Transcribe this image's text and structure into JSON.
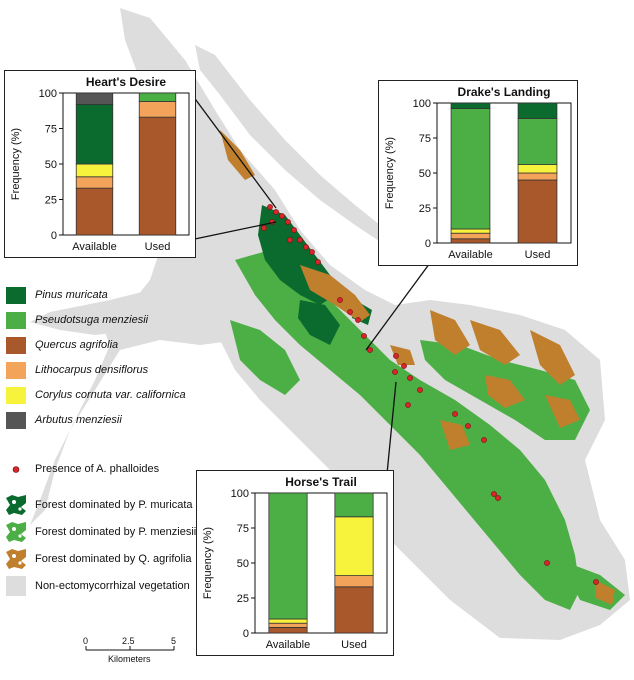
{
  "colors": {
    "pinus": "#0b6b2e",
    "pseudotsuga": "#4caf45",
    "quercus": "#a8582b",
    "lithocarpus": "#f4a35a",
    "corylus": "#f7f23c",
    "arbutus": "#555555",
    "nonecto": "#dddddd",
    "presence": "#d7262b",
    "forest_quercus": "#c07f2c"
  },
  "legend": {
    "species": [
      {
        "key": "pinus",
        "label": "Pinus muricata",
        "icon": "square-swatch"
      },
      {
        "key": "pseudotsuga",
        "label": "Pseudotsuga menziesii",
        "icon": "square-swatch"
      },
      {
        "key": "quercus",
        "label": "Quercus agrifolia",
        "icon": "square-swatch"
      },
      {
        "key": "lithocarpus",
        "label": "Lithocarpus densiflorus",
        "icon": "square-swatch"
      },
      {
        "key": "corylus",
        "label": "Corylus cornuta var. californica",
        "icon": "square-swatch"
      },
      {
        "key": "arbutus",
        "label": "Arbutus menziesii",
        "icon": "square-swatch"
      }
    ],
    "presence_label": "Presence of A. phalloides",
    "forest": [
      {
        "key": "pinus",
        "label": "Forest dominated by P. muricata",
        "icon": "forest-patch-swatch"
      },
      {
        "key": "pseudotsuga",
        "label": "Forest dominated by P. menziesii",
        "icon": "forest-patch-swatch"
      },
      {
        "key": "forest_quercus",
        "label": "Forest dominated by Q. agrifolia",
        "icon": "forest-patch-swatch"
      },
      {
        "key": "nonecto",
        "label": "Non-ectomycorrhizal vegetation",
        "icon": "forest-patch-swatch"
      }
    ]
  },
  "scale_bar": {
    "ticks": [
      "0",
      "2.5",
      "5"
    ],
    "unit": "Kilometers"
  },
  "chart_data": [
    {
      "type": "bar",
      "stacked": true,
      "title": "Heart's Desire",
      "ylabel": "Frequency (%)",
      "ylim": [
        0,
        100
      ],
      "yticks": [
        "0",
        "25",
        "50",
        "75",
        "100"
      ],
      "categories": [
        "Available",
        "Used"
      ],
      "series": [
        {
          "key": "quercus",
          "values": [
            33,
            83
          ]
        },
        {
          "key": "lithocarpus",
          "values": [
            8,
            11
          ]
        },
        {
          "key": "corylus",
          "values": [
            9,
            0
          ]
        },
        {
          "key": "pinus",
          "values": [
            42,
            0
          ]
        },
        {
          "key": "pseudotsuga",
          "values": [
            0,
            6
          ]
        },
        {
          "key": "arbutus",
          "values": [
            8,
            0
          ]
        }
      ]
    },
    {
      "type": "bar",
      "stacked": true,
      "title": "Drake's Landing",
      "ylabel": "Frequency (%)",
      "ylim": [
        0,
        100
      ],
      "yticks": [
        "0",
        "25",
        "50",
        "75",
        "100"
      ],
      "categories": [
        "Available",
        "Used"
      ],
      "series": [
        {
          "key": "quercus",
          "values": [
            3,
            45
          ]
        },
        {
          "key": "lithocarpus",
          "values": [
            4,
            5
          ]
        },
        {
          "key": "corylus",
          "values": [
            3,
            6
          ]
        },
        {
          "key": "pseudotsuga",
          "values": [
            86,
            33
          ]
        },
        {
          "key": "pinus",
          "values": [
            4,
            11
          ]
        }
      ]
    },
    {
      "type": "bar",
      "stacked": true,
      "title": "Horse's Trail",
      "ylabel": "Frequency (%)",
      "ylim": [
        0,
        100
      ],
      "yticks": [
        "0",
        "25",
        "50",
        "75",
        "100"
      ],
      "categories": [
        "Available",
        "Used"
      ],
      "series": [
        {
          "key": "quercus",
          "values": [
            4,
            33
          ]
        },
        {
          "key": "lithocarpus",
          "values": [
            3,
            8
          ]
        },
        {
          "key": "corylus",
          "values": [
            3,
            42
          ]
        },
        {
          "key": "pseudotsuga",
          "values": [
            90,
            17
          ]
        }
      ]
    }
  ]
}
